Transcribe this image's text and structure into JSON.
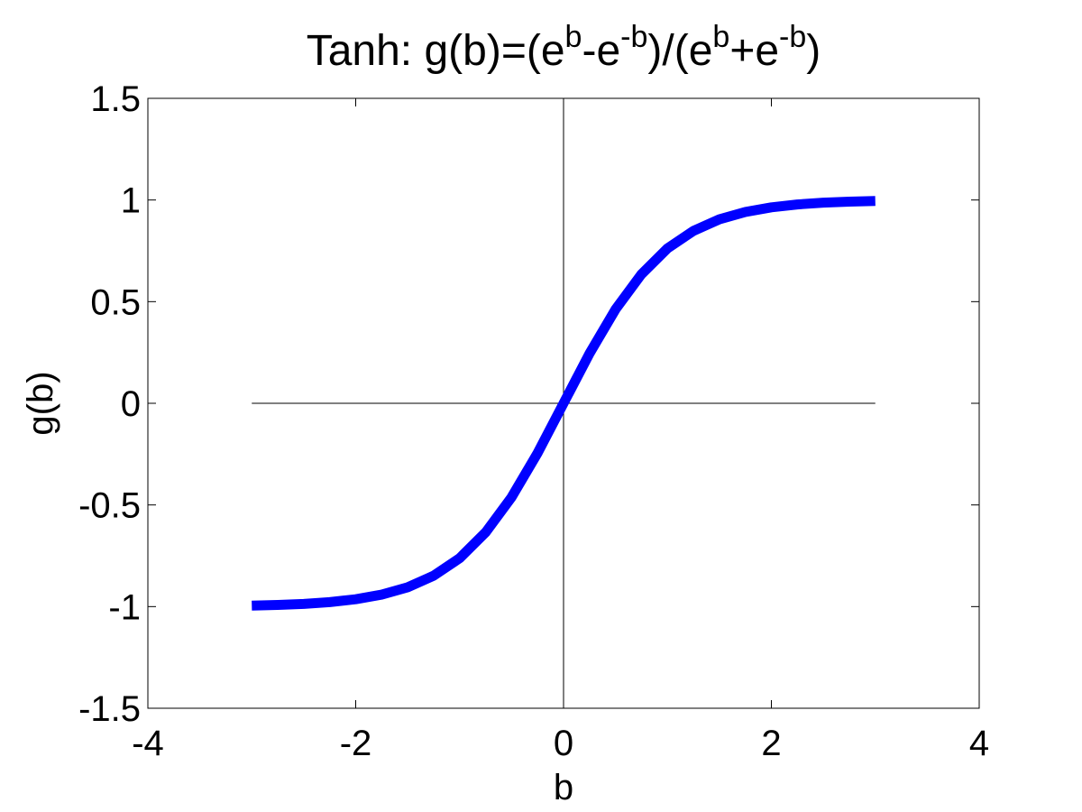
{
  "chart_data": {
    "type": "line",
    "title": {
      "prefix": "Tanh: g(b)=(e",
      "sup1": "b",
      "mid1": "-e",
      "sup2": "-b",
      "mid2": ")/(e",
      "sup3": "b",
      "mid3": "+e",
      "sup4": "-b",
      "suffix": ")"
    },
    "xlabel": "b",
    "ylabel": "g(b)",
    "xlim": [
      -4,
      4
    ],
    "ylim": [
      -1.5,
      1.5
    ],
    "xticks": [
      -4,
      -2,
      0,
      2,
      4
    ],
    "xtick_labels": [
      "-4",
      "-2",
      "0",
      "2",
      "4"
    ],
    "yticks": [
      -1.5,
      -1,
      -0.5,
      0,
      0.5,
      1,
      1.5
    ],
    "ytick_labels": [
      "-1.5",
      "-1",
      "-0.5",
      "0",
      "0.5",
      "1",
      "1.5"
    ],
    "grid": false,
    "reference_lines": {
      "horizontal": {
        "y": 0,
        "x_range": [
          -3,
          3
        ]
      },
      "vertical": {
        "x": 0,
        "y_range": [
          -1.5,
          1.5
        ]
      }
    },
    "series": [
      {
        "function": "tanh",
        "color": "#0000ff",
        "x": [
          -3,
          -2.75,
          -2.5,
          -2.25,
          -2,
          -1.75,
          -1.5,
          -1.25,
          -1,
          -0.75,
          -0.5,
          -0.25,
          0,
          0.25,
          0.5,
          0.75,
          1,
          1.25,
          1.5,
          1.75,
          2,
          2.25,
          2.5,
          2.75,
          3
        ],
        "y": [
          -0.995,
          -0.992,
          -0.987,
          -0.978,
          -0.964,
          -0.941,
          -0.905,
          -0.848,
          -0.762,
          -0.635,
          -0.462,
          -0.245,
          0,
          0.245,
          0.462,
          0.635,
          0.762,
          0.848,
          0.905,
          0.941,
          0.964,
          0.978,
          0.987,
          0.992,
          0.995
        ]
      }
    ]
  }
}
